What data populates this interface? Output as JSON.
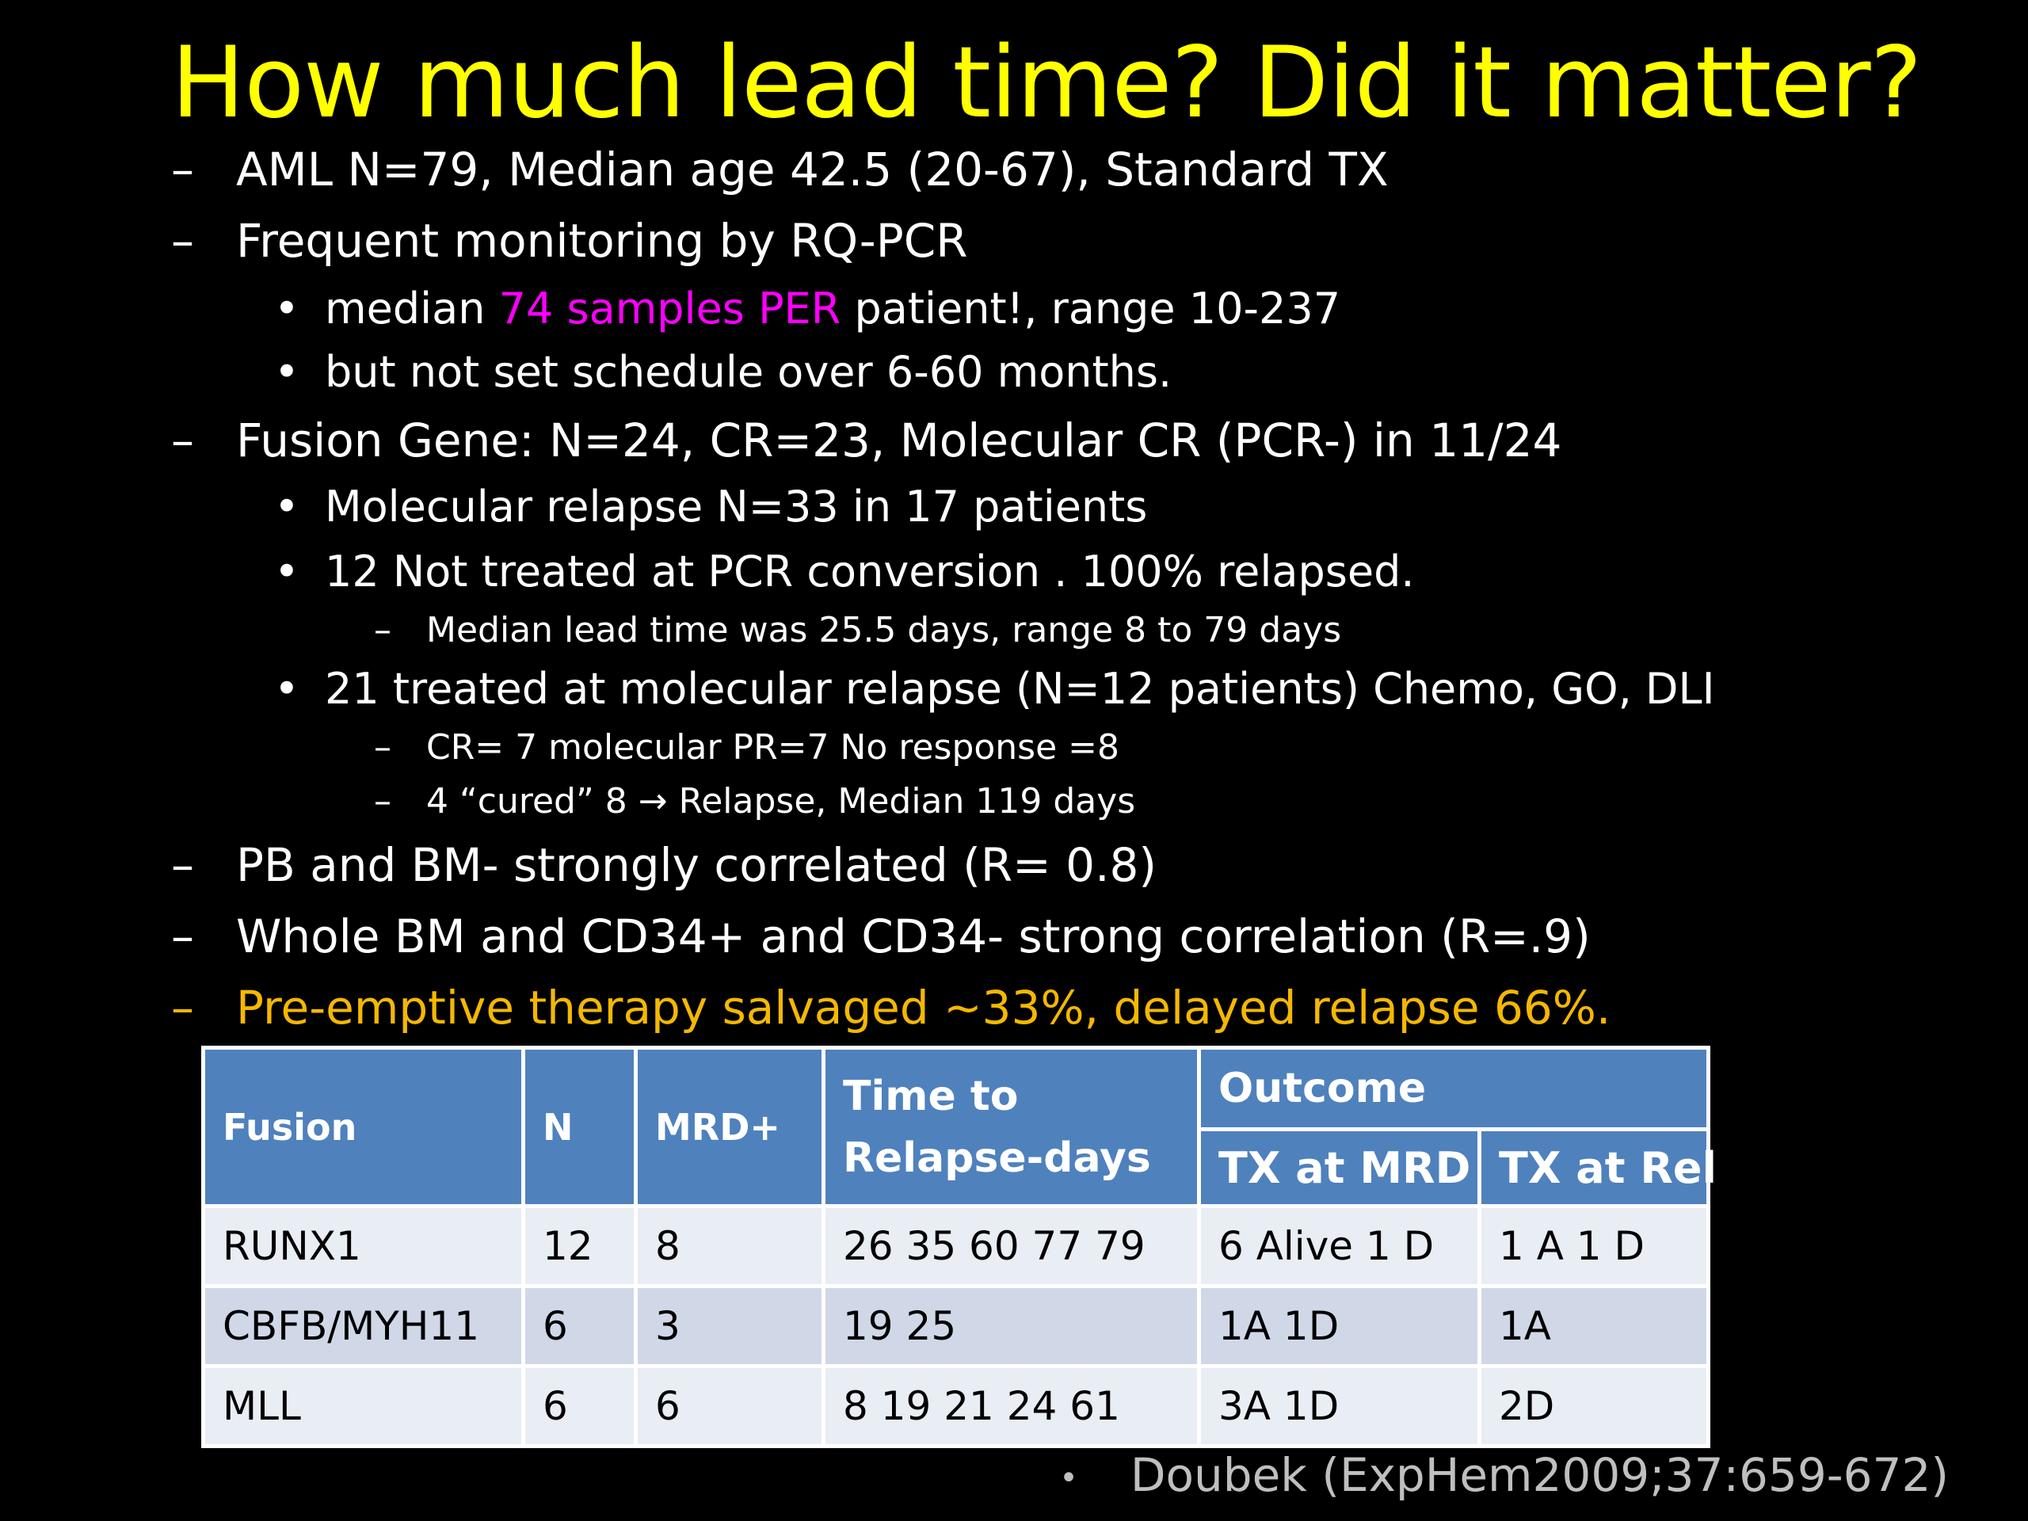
{
  "slide": {
    "title": "How much lead time? Did it matter?",
    "bullets": {
      "b1": "AML  N=79, Median age 42.5 (20-67), Standard TX",
      "b2": "Frequent monitoring  by RQ-PCR",
      "b2_1_pre": "median ",
      "b2_1_highlight": "74 samples PER",
      "b2_1_post": " patient!, range 10-237",
      "b2_2": "but not set schedule over 6-60 months.",
      "b3": "Fusion Gene:  N=24, CR=23, Molecular CR (PCR-) in 11/24",
      "b3_1": "Molecular relapse N=33  in 17 patients",
      "b3_2": "12 Not treated  at PCR conversion . 100% relapsed.",
      "b3_2_1": " Median lead time was 25.5 days, range 8 to 79 days",
      "b3_3": "21  treated at molecular relapse (N=12 patients)  Chemo, GO, DLI",
      "b3_3_1": "CR= 7 molecular PR=7 No response =8",
      "b3_3_2_pre": "4 “cured”  8 ",
      "b3_3_2_arrow": "→",
      "b3_3_2_post": " Relapse, Median 119 days",
      "b4": "PB and BM- strongly correlated (R= 0.8)",
      "b5": "Whole BM and CD34+ and CD34- strong correlation  (R=.9)",
      "b6": "Pre-emptive therapy salvaged ~33%, delayed  relapse 66%."
    },
    "markers": {
      "dash": "–",
      "dot": "•"
    },
    "colors": {
      "title": "#ffff00",
      "highlight": "#ff00ff",
      "emphasis": "#f5b800",
      "table_header": "#4f81bd"
    },
    "table": {
      "headers": {
        "fusion": "Fusion",
        "n": "N",
        "mrd": "MRD+",
        "time_line1": "Time to",
        "time_line2": "Relapse-days",
        "outcome": "Outcome",
        "tx_mrd": "TX at MRD",
        "tx_rel": "TX at Rel"
      },
      "rows": [
        {
          "fusion": "RUNX1",
          "n": "12",
          "mrd": "8",
          "time": "26 35 60 77 79",
          "tx_mrd": "6 Alive 1 D",
          "tx_rel": "1 A  1 D"
        },
        {
          "fusion": "CBFB/MYH11",
          "n": "6",
          "mrd": "3",
          "time": "19  25",
          "tx_mrd": "1A  1D",
          "tx_rel": "1A"
        },
        {
          "fusion": "MLL",
          "n": "6",
          "mrd": "6",
          "time": "8  19 21  24  61",
          "tx_mrd": "3A    1D",
          "tx_rel": "2D"
        }
      ]
    },
    "citation": "Doubek (ExpHem2009;37:659-672)"
  }
}
